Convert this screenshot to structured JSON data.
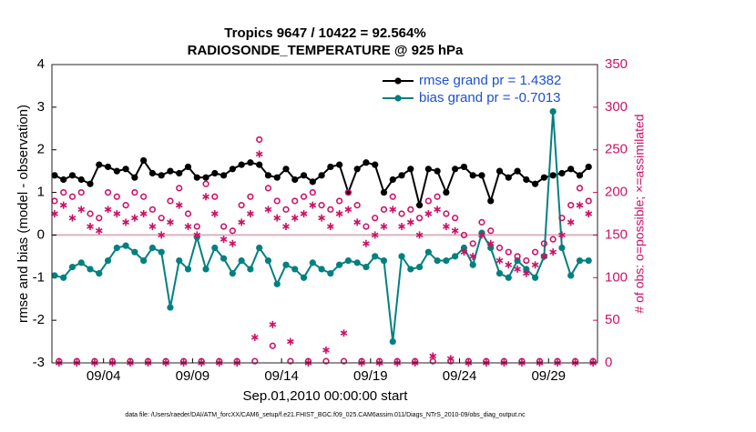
{
  "chart_data": {
    "type": "line",
    "title": "Tropics 9647 / 10422 = 92.564%",
    "subtitle": "RADIOSONDE_TEMPERATURE @ 925 hPa",
    "xlabel": "Sep.01,2010 00:00:00 start",
    "ylabel": "rmse and bias (model - observation)",
    "y2label": "# of obs: o=possible; ×=assimilated",
    "footnote": "data file: /Users/raeder/DAI/ATM_forcXX/CAM6_setup/f.e21.FHIST_BGC.f09_025.CAM6assim.011/Diags_NTrS_2010-09/obs_diag_output.nc",
    "xlim": [
      0.1,
      30.75
    ],
    "xticks": [
      {
        "value": 3,
        "label": "09/04"
      },
      {
        "value": 8,
        "label": "09/09"
      },
      {
        "value": 13,
        "label": "09/14"
      },
      {
        "value": 18,
        "label": "09/19"
      },
      {
        "value": 23,
        "label": "09/24"
      },
      {
        "value": 28,
        "label": "09/29"
      }
    ],
    "ylim": [
      -3,
      4
    ],
    "yticks": [
      -3,
      -2,
      -1,
      0,
      1,
      2,
      3,
      4
    ],
    "y2lim": [
      0,
      350
    ],
    "y2ticks": [
      0,
      50,
      100,
      150,
      200,
      250,
      300,
      350
    ],
    "hline": 0,
    "legend": "upper right",
    "x": [
      0.25,
      0.75,
      1.25,
      1.75,
      2.25,
      2.75,
      3.25,
      3.75,
      4.25,
      4.75,
      5.25,
      5.75,
      6.25,
      6.75,
      7.25,
      7.75,
      8.25,
      8.75,
      9.25,
      9.75,
      10.25,
      10.75,
      11.25,
      11.75,
      12.25,
      12.75,
      13.25,
      13.75,
      14.25,
      14.75,
      15.25,
      15.75,
      16.25,
      16.75,
      17.25,
      17.75,
      18.25,
      18.75,
      19.25,
      19.75,
      20.25,
      20.75,
      21.25,
      21.75,
      22.25,
      22.75,
      23.25,
      23.75,
      24.25,
      24.75,
      25.25,
      25.75,
      26.25,
      26.75,
      27.25,
      27.75,
      28.25,
      28.75,
      29.25,
      29.75,
      30.25
    ],
    "series": [
      {
        "name": "rmse grand pr = 1.4382",
        "color": "#000000",
        "marker": "dot",
        "values": [
          1.4,
          1.3,
          1.4,
          1.3,
          1.2,
          1.65,
          1.6,
          1.5,
          1.55,
          1.35,
          1.75,
          1.45,
          1.4,
          1.5,
          1.45,
          1.6,
          1.35,
          1.35,
          1.45,
          1.4,
          1.55,
          1.65,
          1.7,
          1.65,
          1.4,
          1.35,
          1.55,
          1.3,
          1.4,
          1.25,
          1.4,
          1.6,
          1.65,
          1.0,
          1.55,
          1.7,
          1.65,
          1.0,
          1.3,
          1.4,
          1.55,
          0.7,
          1.55,
          1.5,
          1.0,
          1.55,
          1.6,
          1.4,
          1.4,
          0.8,
          1.5,
          1.35,
          1.5,
          1.3,
          1.2,
          1.35,
          1.4,
          1.45,
          1.55,
          1.4,
          1.6
        ]
      },
      {
        "name": "bias grand pr = -0.7013",
        "color": "#008080",
        "marker": "dot",
        "values": [
          -0.95,
          -1.0,
          -0.75,
          -0.65,
          -0.8,
          -0.9,
          -0.6,
          -0.3,
          -0.25,
          -0.4,
          -0.6,
          -0.3,
          -0.4,
          -1.7,
          -0.6,
          -0.8,
          -0.05,
          -0.8,
          -0.3,
          -0.55,
          -0.9,
          -0.6,
          -0.8,
          -0.3,
          -0.6,
          -1.15,
          -0.7,
          -0.8,
          -1.0,
          -0.65,
          -0.8,
          -0.9,
          -0.7,
          -0.6,
          -0.65,
          -0.75,
          -0.5,
          -0.6,
          -2.5,
          -0.5,
          -0.8,
          -0.75,
          -0.4,
          -0.6,
          -0.6,
          -0.5,
          -0.3,
          -0.7,
          0.05,
          -0.3,
          -0.9,
          -1.0,
          -0.6,
          -0.8,
          -1.0,
          -0.5,
          2.9,
          -0.3,
          -0.95,
          -0.6,
          -0.6
        ]
      },
      {
        "color": "#cc1166",
        "marker": "o",
        "axis": "y2",
        "values": [
          190,
          200,
          195,
          200,
          175,
          170,
          200,
          195,
          185,
          200,
          195,
          180,
          170,
          190,
          205,
          175,
          160,
          210,
          195,
          160,
          155,
          185,
          195,
          262,
          205,
          190,
          180,
          190,
          195,
          200,
          185,
          180,
          190,
          200,
          185,
          160,
          170,
          180,
          195,
          175,
          180,
          170,
          190,
          195,
          175,
          170,
          150,
          140,
          165,
          155,
          135,
          130,
          125,
          120,
          130,
          140,
          145,
          170,
          185,
          205,
          190
        ]
      },
      {
        "color": "#cc1166",
        "marker": "*",
        "axis": "y2",
        "values": [
          175,
          185,
          170,
          180,
          160,
          155,
          180,
          175,
          165,
          170,
          175,
          160,
          150,
          165,
          185,
          160,
          150,
          195,
          175,
          145,
          140,
          165,
          175,
          245,
          180,
          170,
          160,
          170,
          175,
          185,
          170,
          160,
          175,
          180,
          165,
          140,
          150,
          160,
          180,
          160,
          165,
          150,
          175,
          180,
          160,
          155,
          130,
          125,
          150,
          140,
          120,
          115,
          110,
          105,
          115,
          125,
          130,
          150,
          165,
          185,
          175
        ]
      },
      {
        "color": "#cc1166",
        "marker": "o",
        "axis": "y2",
        "x": [
          0.5,
          1.5,
          2.5,
          3.5,
          4.5,
          5.5,
          6.5,
          7.5,
          8.5,
          9.5,
          10.5,
          11.5,
          12.5,
          13.5,
          14.5,
          15.5,
          16.5,
          17.5,
          18.5,
          19.5,
          20.5,
          21.5,
          22.5,
          23.5,
          24.5,
          25.5,
          26.5,
          27.5,
          28.5,
          29.5,
          30.5
        ],
        "values": [
          2,
          2,
          2,
          2,
          2,
          2,
          2,
          2,
          2,
          2,
          2,
          2,
          20,
          2,
          2,
          2,
          2,
          2,
          2,
          2,
          2,
          2,
          2,
          2,
          2,
          2,
          2,
          2,
          2,
          2,
          2
        ]
      },
      {
        "color": "#cc1166",
        "marker": "*",
        "axis": "y2",
        "x": [
          0.5,
          1.5,
          2.5,
          3.5,
          4.5,
          5.5,
          6.5,
          7.5,
          8.5,
          9.5,
          10.5,
          11.5,
          12.5,
          13.5,
          14.5,
          15.5,
          16.5,
          17.5,
          18.5,
          19.5,
          20.5,
          21.5,
          22.5,
          23.5,
          24.5,
          25.5,
          26.5,
          27.5,
          28.5,
          29.5,
          30.5
        ],
        "values": [
          0,
          0,
          0,
          0,
          0,
          0,
          0,
          0,
          0,
          0,
          0,
          30,
          45,
          25,
          0,
          15,
          35,
          0,
          0,
          0,
          0,
          8,
          5,
          0,
          0,
          0,
          0,
          0,
          0,
          0,
          0
        ]
      }
    ]
  }
}
